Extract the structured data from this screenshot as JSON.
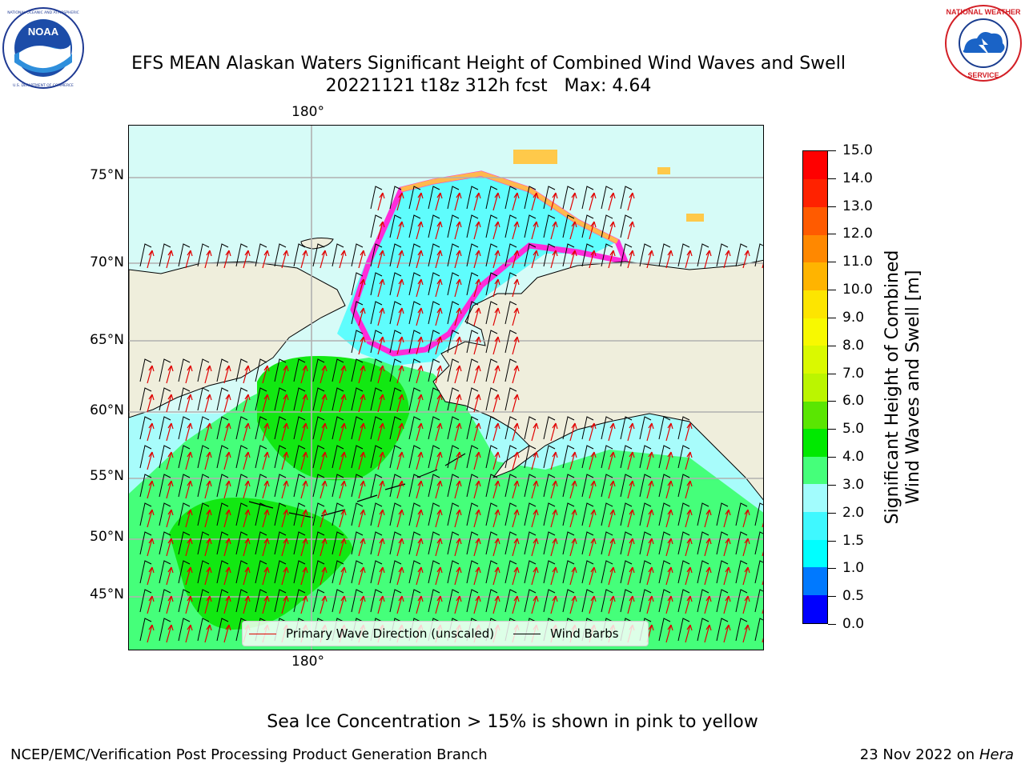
{
  "header": {
    "title_line1": "EFS MEAN Alaskan Waters Significant Height of Combined Wind Waves and Swell",
    "title_line2": "20221121 t18z 312h fcst   Max: 4.64"
  },
  "logos": {
    "left": {
      "text": "NOAA",
      "ring_text": "NATIONAL OCEANIC AND ATMOSPHERIC ADMINISTRATION · U.S. DEPARTMENT OF COMMERCE"
    },
    "right": {
      "ring_text": "NATIONAL WEATHER SERVICE"
    }
  },
  "map": {
    "lon_label_top": "180°",
    "lon_label_bottom": "180°",
    "lat_labels": [
      "75°N",
      "70°N",
      "65°N",
      "60°N",
      "55°N",
      "50°N",
      "45°N"
    ],
    "land_color": "#efeedc",
    "ice_water_color": "#cffcf8",
    "grid_color": "#b0b0b0"
  },
  "legend": {
    "primary_wave_label": "Primary Wave Direction (unscaled)",
    "primary_wave_color": "#e00000",
    "wind_barbs_label": "Wind Barbs",
    "wind_barbs_color": "#000000"
  },
  "colorbar": {
    "title_line1": "Significant Height of Combined",
    "title_line2": "Wind Waves and Swell [m]",
    "ticks": [
      "15.0",
      "14.0",
      "13.0",
      "12.0",
      "11.0",
      "10.0",
      "9.0",
      "8.0",
      "7.0",
      "6.0",
      "5.0",
      "4.0",
      "3.0",
      "2.0",
      "1.5",
      "1.0",
      "0.5",
      "0.0"
    ],
    "colors_bottom_to_top": [
      "#0000ff",
      "#0079ff",
      "#00ffff",
      "#3ff8ff",
      "#a2fcfd",
      "#45ff7a",
      "#00e900",
      "#5ae602",
      "#bbf500",
      "#daf900",
      "#f8f900",
      "#fde500",
      "#ffb400",
      "#ff8800",
      "#ff5b00",
      "#ff2200",
      "#ff0000"
    ]
  },
  "note": "Sea Ice Concentration > 15% is shown in pink to yellow",
  "footer": {
    "left": "NCEP/EMC/Verification Post Processing Product Generation Branch",
    "right_date": "23 Nov 2022 on",
    "right_host": "Hera"
  }
}
